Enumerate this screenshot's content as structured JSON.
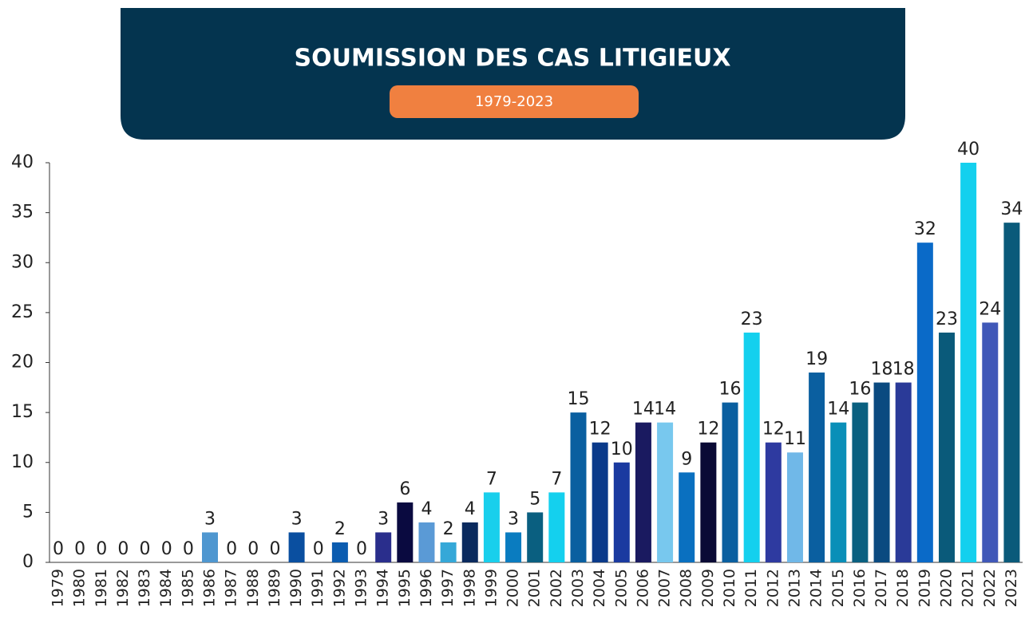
{
  "chart_data": {
    "type": "bar",
    "title": "SOUMISSION DES CAS LITIGIEUX",
    "subtitle": "1979-2023",
    "categories": [
      "1979",
      "1980",
      "1981",
      "1982",
      "1983",
      "1984",
      "1985",
      "1986",
      "1987",
      "1988",
      "1989",
      "1990",
      "1991",
      "1992",
      "1993",
      "1994",
      "1995",
      "1996",
      "1997",
      "1998",
      "1999",
      "2000",
      "2001",
      "2002",
      "2003",
      "2004",
      "2005",
      "2006",
      "2007",
      "2008",
      "2009",
      "2010",
      "2011",
      "2012",
      "2013",
      "2014",
      "2015",
      "2016",
      "2017",
      "2018",
      "2019",
      "2020",
      "2021",
      "2022",
      "2023"
    ],
    "values": [
      0,
      0,
      0,
      0,
      0,
      0,
      0,
      3,
      0,
      0,
      0,
      3,
      0,
      2,
      0,
      3,
      6,
      4,
      2,
      4,
      7,
      3,
      5,
      7,
      15,
      12,
      10,
      14,
      14,
      9,
      12,
      16,
      23,
      12,
      11,
      19,
      14,
      16,
      18,
      18,
      32,
      23,
      40,
      24,
      34
    ],
    "colors": [
      "#0a3a6a",
      "#0a3a6a",
      "#0a3a6a",
      "#0a3a6a",
      "#0a3a6a",
      "#0a3a6a",
      "#0a3a6a",
      "#4f97d0",
      "#0a3a6a",
      "#0a3a6a",
      "#0a3a6a",
      "#0a4fa0",
      "#0a3a6a",
      "#0b5cb0",
      "#0a3a6a",
      "#2a2e8c",
      "#0a0a40",
      "#5a9ad6",
      "#35a8d8",
      "#0a2a5e",
      "#19cfec",
      "#0a7cc0",
      "#0a5f80",
      "#14d0ee",
      "#0a5fa0",
      "#0a3a8a",
      "#1a3aa0",
      "#1a1a60",
      "#78c8ee",
      "#0a70c0",
      "#0a0a35",
      "#0a5fa0",
      "#14d0ee",
      "#2e3aa0",
      "#70b8e8",
      "#0a5fa0",
      "#0a8fb8",
      "#0a6080",
      "#0a4a80",
      "#2a3a98",
      "#0a6ac8",
      "#0a5a7a",
      "#14d0ee",
      "#4058b8",
      "#0a5a7a"
    ],
    "ylim": [
      0,
      40
    ],
    "yticks": [
      0,
      5,
      10,
      15,
      20,
      25,
      30,
      35,
      40
    ],
    "grid": false
  }
}
